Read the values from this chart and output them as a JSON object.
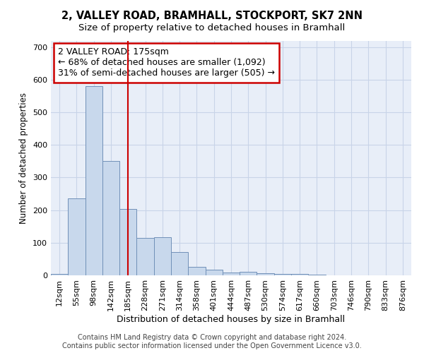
{
  "title": "2, VALLEY ROAD, BRAMHALL, STOCKPORT, SK7 2NN",
  "subtitle": "Size of property relative to detached houses in Bramhall",
  "xlabel": "Distribution of detached houses by size in Bramhall",
  "ylabel": "Number of detached properties",
  "categories": [
    "12sqm",
    "55sqm",
    "98sqm",
    "142sqm",
    "185sqm",
    "228sqm",
    "271sqm",
    "314sqm",
    "358sqm",
    "401sqm",
    "444sqm",
    "487sqm",
    "530sqm",
    "574sqm",
    "617sqm",
    "660sqm",
    "703sqm",
    "746sqm",
    "790sqm",
    "833sqm",
    "876sqm"
  ],
  "values": [
    5,
    235,
    580,
    350,
    203,
    115,
    118,
    72,
    27,
    17,
    8,
    10,
    7,
    5,
    4,
    3,
    0,
    0,
    0,
    0,
    0
  ],
  "bar_color": "#c8d8ec",
  "bar_edge_color": "#7090b8",
  "vline_x": 4,
  "vline_color": "#cc0000",
  "annotation_text": "2 VALLEY ROAD: 175sqm\n← 68% of detached houses are smaller (1,092)\n31% of semi-detached houses are larger (505) →",
  "annotation_box_color": "#ffffff",
  "annotation_box_edge": "#cc0000",
  "ylim": [
    0,
    720
  ],
  "yticks": [
    0,
    100,
    200,
    300,
    400,
    500,
    600,
    700
  ],
  "grid_color": "#c8d4e8",
  "background_color": "#e8eef8",
  "footer": "Contains HM Land Registry data © Crown copyright and database right 2024.\nContains public sector information licensed under the Open Government Licence v3.0.",
  "title_fontsize": 10.5,
  "subtitle_fontsize": 9.5,
  "xlabel_fontsize": 9,
  "ylabel_fontsize": 8.5,
  "tick_fontsize": 8,
  "annotation_fontsize": 9,
  "footer_fontsize": 7
}
